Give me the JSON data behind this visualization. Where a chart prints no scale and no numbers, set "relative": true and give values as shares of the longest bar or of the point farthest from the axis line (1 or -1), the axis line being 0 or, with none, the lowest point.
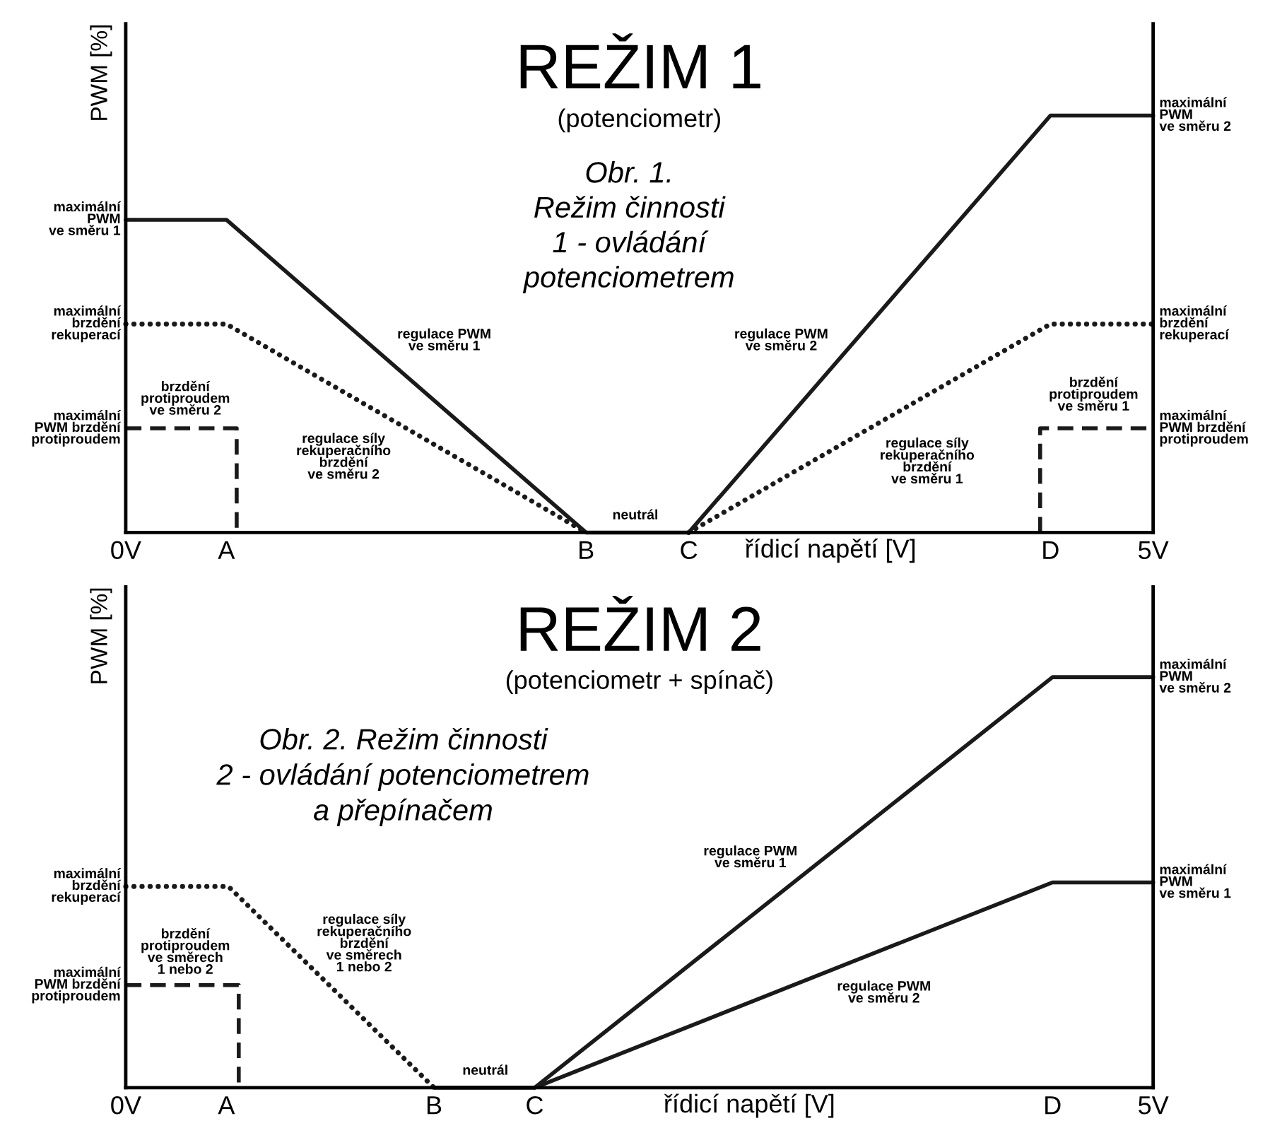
{
  "chart_data": [
    {
      "type": "line",
      "relative": true,
      "title": "REŽIM 1",
      "subtitle": "(potenciometr)",
      "xlabel": "řídicí napětí [V]",
      "ylabel": "PWM [%]",
      "xlim": [
        0,
        5
      ],
      "xticks": [
        {
          "value": 0,
          "label": "0V"
        },
        {
          "value": 0.49,
          "label": "A"
        },
        {
          "value": 2.24,
          "label": "B"
        },
        {
          "value": 2.74,
          "label": "C"
        },
        {
          "value": 4.5,
          "label": "D"
        },
        {
          "value": 5,
          "label": "5V"
        }
      ],
      "tick_labels": "x",
      "series": [
        {
          "color": "#1a1a1a",
          "line_style": "solid",
          "x": [
            0,
            0.49,
            2.24,
            2.74,
            4.5,
            5
          ],
          "values": [
            0.75,
            0.75,
            0,
            0,
            1,
            1
          ]
        },
        {
          "color": "#1a1a1a",
          "line_style": "dotted",
          "x": [
            0,
            0.49,
            2.24,
            2.49,
            2.74,
            4.5,
            5
          ],
          "values": [
            0.5,
            0.5,
            0,
            null,
            0,
            0.5,
            0.5
          ]
        },
        {
          "color": "#1a1a1a",
          "line_style": "dashed",
          "x": [
            0,
            0.54,
            0.54,
            2.5,
            4.45,
            4.45,
            5
          ],
          "values": [
            0.25,
            0.25,
            0,
            null,
            0,
            0.25,
            0.25
          ]
        }
      ],
      "annotations": [
        "Obr. 1.\nRežim činnosti\n1 - ovládání\npotenciometrem",
        "maximální\nPWM\nve směru 1",
        "maximální\nbrzdění\nrekuperací",
        "maximální\nPWM brzdění\nprotiproudem",
        "brzdění\nprotiproudem\nve směru 2",
        "regulace PWM\nve směru 1",
        "regulace síly\nrekuperačního\nbrzdění\nve směru 2",
        "neutrál",
        "regulace PWM\nve směru 2",
        "regulace síly\nrekuperačního\nbrzdění\nve směru 1",
        "brzdění\nprotiproudem\nve směru 1",
        "maximální\nPWM\nve směru 2",
        "maximální\nbrzdění\nrekuperací",
        "maximální\nPWM brzdění\nprotiproudem"
      ]
    },
    {
      "type": "line",
      "relative": true,
      "title": "REŽIM 2",
      "subtitle": "(potenciometr + spínač)",
      "xlabel": "řídicí napětí [V]",
      "ylabel": "PWM [%]",
      "xlim": [
        0,
        5
      ],
      "xticks": [
        {
          "value": 0,
          "label": "0V"
        },
        {
          "value": 0.49,
          "label": "A"
        },
        {
          "value": 1.5,
          "label": "B"
        },
        {
          "value": 1.99,
          "label": "C"
        },
        {
          "value": 4.51,
          "label": "D"
        },
        {
          "value": 5,
          "label": "5V"
        }
      ],
      "tick_labels": "x",
      "series": [
        {
          "color": "#1a1a1a",
          "line_style": "solid",
          "x": [
            1.5,
            1.99,
            4.51,
            5
          ],
          "values": [
            0,
            0,
            1,
            1
          ]
        },
        {
          "color": "#1a1a1a",
          "line_style": "solid",
          "x": [
            1.99,
            4.51,
            5
          ],
          "values": [
            0,
            0.5,
            0.5
          ]
        },
        {
          "color": "#1a1a1a",
          "line_style": "dotted",
          "x": [
            0,
            0.5,
            1.5
          ],
          "values": [
            0.49,
            0.49,
            0
          ]
        },
        {
          "color": "#1a1a1a",
          "line_style": "dashed",
          "x": [
            0,
            0.55,
            0.55
          ],
          "values": [
            0.25,
            0.25,
            0
          ]
        }
      ],
      "annotations": [
        "Obr. 2. Režim činnosti\n2 - ovládání potenciometrem\na přepínačem",
        "maximální\nbrzdění\nrekuperací",
        "maximální\nPWM brzdění\nprotiproudem",
        "brzdění\nprotiproudem\nve směrech\n1 nebo 2",
        "regulace síly\nrekuperačního\nbrzdění\nve směrech\n1 nebo 2",
        "neutrál",
        "regulace PWM\nve směru 1",
        "regulace PWM\nve směru 2",
        "maximální\nPWM\nve směru 2",
        "maximální\nPWM\nve směru 1"
      ]
    }
  ]
}
